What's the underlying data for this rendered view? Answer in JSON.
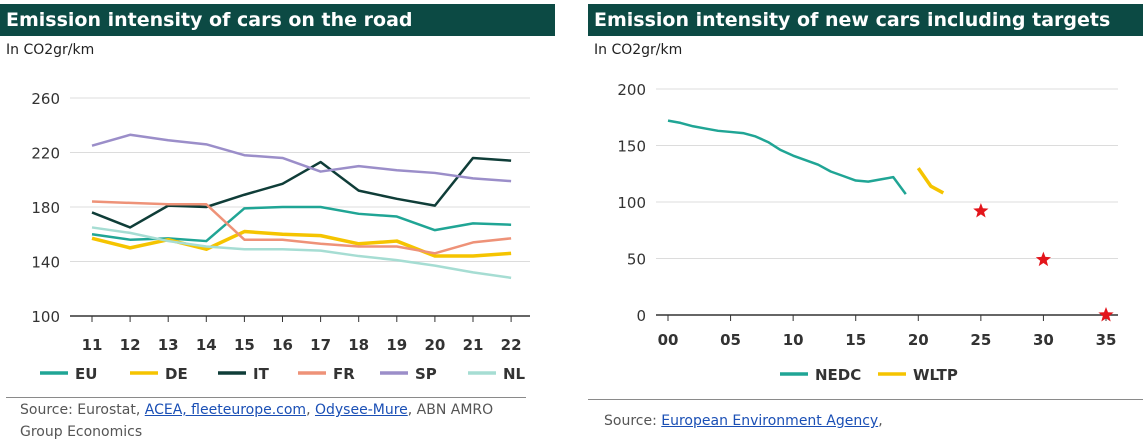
{
  "colors": {
    "title_bg": "#0c4a44",
    "EU": "#20a595",
    "DE": "#f5c400",
    "IT": "#0f3d38",
    "FR": "#ee9278",
    "SP": "#9b8ec9",
    "NL": "#a6ddd3",
    "NEDC": "#20a595",
    "WLTP": "#f5c400",
    "target": "#e3151b"
  },
  "left": {
    "title": "Emission intensity of cars on the road",
    "unit": "In CO2gr/km",
    "source": {
      "prefix": "Source: Eurostat, ",
      "link1": "ACEA, fleeteurope.com",
      "sep1": ", ",
      "link2": "Odysee-Mure",
      "suffix": ", ABN AMRO Group Economics"
    }
  },
  "right": {
    "title": "Emission intensity of new cars including targets",
    "unit": "In CO2gr/km",
    "source": {
      "prefix": "Source: ",
      "link1": "European Environment Agency",
      "suffix": ","
    }
  },
  "chart_data": [
    {
      "type": "line",
      "title": "Emission intensity of cars on the road",
      "ylabel": "In CO2gr/km",
      "ylim": [
        100,
        260
      ],
      "yticks": [
        100,
        140,
        180,
        220,
        260
      ],
      "grid": true,
      "legend": "bottom",
      "categories": [
        "11",
        "12",
        "13",
        "14",
        "15",
        "16",
        "17",
        "18",
        "19",
        "20",
        "21",
        "22"
      ],
      "series": [
        {
          "name": "EU",
          "values": [
            160,
            156,
            157,
            155,
            179,
            180,
            180,
            175,
            173,
            163,
            168,
            167
          ]
        },
        {
          "name": "DE",
          "values": [
            157,
            150,
            156,
            149,
            162,
            160,
            159,
            153,
            155,
            144,
            144,
            146
          ]
        },
        {
          "name": "IT",
          "values": [
            176,
            165,
            181,
            180,
            189,
            197,
            213,
            192,
            186,
            181,
            216,
            214
          ]
        },
        {
          "name": "FR",
          "values": [
            184,
            183,
            182,
            182,
            156,
            156,
            153,
            151,
            151,
            146,
            154,
            157
          ]
        },
        {
          "name": "SP",
          "values": [
            225,
            233,
            229,
            226,
            218,
            216,
            206,
            210,
            207,
            205,
            201,
            199
          ]
        },
        {
          "name": "NL",
          "values": [
            165,
            161,
            155,
            151,
            149,
            149,
            148,
            144,
            141,
            137,
            132,
            128
          ]
        }
      ]
    },
    {
      "type": "line",
      "title": "Emission intensity of new cars including targets",
      "ylabel": "In CO2gr/km",
      "xlim": [
        0,
        35
      ],
      "ylim": [
        0,
        200
      ],
      "xticks": [
        "00",
        "05",
        "10",
        "15",
        "20",
        "25",
        "30",
        "35"
      ],
      "yticks": [
        0,
        50,
        100,
        150,
        200
      ],
      "grid": true,
      "legend": "bottom",
      "series": [
        {
          "name": "NEDC",
          "x": [
            0,
            1,
            2,
            3,
            4,
            5,
            6,
            7,
            8,
            9,
            10,
            11,
            12,
            13,
            14,
            15,
            16,
            17,
            18,
            19
          ],
          "values": [
            172,
            170,
            167,
            165,
            163,
            162,
            161,
            158,
            153,
            146,
            141,
            137,
            133,
            127,
            123,
            119,
            118,
            120,
            122,
            107
          ]
        },
        {
          "name": "WLTP",
          "x": [
            20,
            21,
            22
          ],
          "values": [
            130,
            114,
            108
          ]
        }
      ],
      "targets": [
        {
          "x": 25,
          "value": 92
        },
        {
          "x": 30,
          "value": 49
        },
        {
          "x": 35,
          "value": 0
        }
      ]
    }
  ]
}
